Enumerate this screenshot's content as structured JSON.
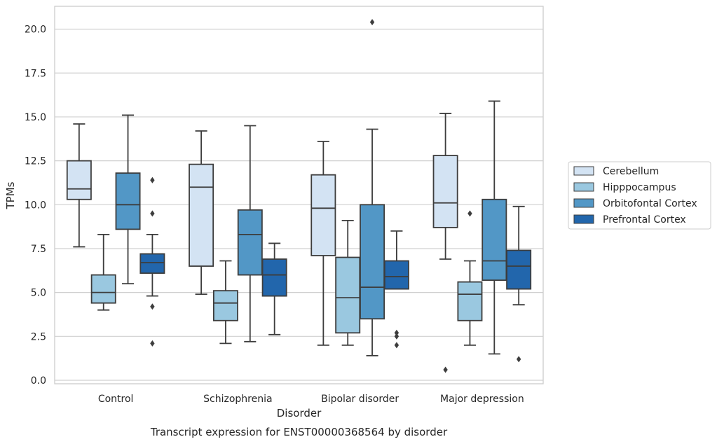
{
  "caption": "Transcript expression for ENST00000368564 by disorder",
  "chart_data": {
    "type": "box",
    "xlabel": "Disorder",
    "ylabel": "TPMs",
    "ylim": [
      -0.2,
      21.3
    ],
    "yticks": [
      "0.0",
      "2.5",
      "5.0",
      "7.5",
      "10.0",
      "12.5",
      "15.0",
      "17.5",
      "20.0"
    ],
    "ytick_values": [
      0,
      2.5,
      5,
      7.5,
      10,
      12.5,
      15,
      17.5,
      20
    ],
    "grid": "horizontal",
    "legend_placement": "right",
    "categories": [
      "Control",
      "Schizophrenia",
      "Bipolar disorder",
      "Major depression"
    ],
    "series": [
      {
        "name": "Cerebellum",
        "color": "#d3e3f3",
        "boxes": [
          {
            "whislo": 7.6,
            "q1": 10.3,
            "med": 10.9,
            "q3": 12.5,
            "whishi": 14.6,
            "fliers": []
          },
          {
            "whislo": 4.9,
            "q1": 6.5,
            "med": 11.0,
            "q3": 12.3,
            "whishi": 14.2,
            "fliers": []
          },
          {
            "whislo": 2.0,
            "q1": 7.1,
            "med": 9.8,
            "q3": 11.7,
            "whishi": 13.6,
            "fliers": []
          },
          {
            "whislo": 6.9,
            "q1": 8.7,
            "med": 10.1,
            "q3": 12.8,
            "whishi": 15.2,
            "fliers": [
              0.6
            ]
          }
        ]
      },
      {
        "name": "Hipppocampus",
        "color": "#9ac8e0",
        "boxes": [
          {
            "whislo": 4.0,
            "q1": 4.4,
            "med": 5.0,
            "q3": 6.0,
            "whishi": 8.3,
            "fliers": []
          },
          {
            "whislo": 2.1,
            "q1": 3.4,
            "med": 4.4,
            "q3": 5.1,
            "whishi": 6.8,
            "fliers": []
          },
          {
            "whislo": 2.0,
            "q1": 2.7,
            "med": 4.7,
            "q3": 7.0,
            "whishi": 9.1,
            "fliers": []
          },
          {
            "whislo": 2.0,
            "q1": 3.4,
            "med": 4.9,
            "q3": 5.6,
            "whishi": 6.8,
            "fliers": [
              9.5
            ]
          }
        ]
      },
      {
        "name": "Orbitofontal Cortex",
        "color": "#5297c6",
        "boxes": [
          {
            "whislo": 5.5,
            "q1": 8.6,
            "med": 10.0,
            "q3": 11.8,
            "whishi": 15.1,
            "fliers": []
          },
          {
            "whislo": 2.2,
            "q1": 6.0,
            "med": 8.3,
            "q3": 9.7,
            "whishi": 14.5,
            "fliers": []
          },
          {
            "whislo": 1.4,
            "q1": 3.5,
            "med": 5.3,
            "q3": 10.0,
            "whishi": 14.3,
            "fliers": [
              20.4
            ]
          },
          {
            "whislo": 1.5,
            "q1": 5.7,
            "med": 6.8,
            "q3": 10.3,
            "whishi": 15.9,
            "fliers": []
          }
        ]
      },
      {
        "name": "Prefrontal Cortex",
        "color": "#2266ac",
        "boxes": [
          {
            "whislo": 4.8,
            "q1": 6.1,
            "med": 6.7,
            "q3": 7.2,
            "whishi": 8.3,
            "fliers": [
              11.4,
              9.5,
              4.2,
              2.1
            ]
          },
          {
            "whislo": 2.6,
            "q1": 4.8,
            "med": 6.0,
            "q3": 6.9,
            "whishi": 7.8,
            "fliers": []
          },
          {
            "whislo": 5.2,
            "q1": 5.2,
            "med": 5.9,
            "q3": 6.8,
            "whishi": 8.5,
            "fliers": [
              2.7,
              2.5,
              2.0
            ]
          },
          {
            "whislo": 4.3,
            "q1": 5.2,
            "med": 6.5,
            "q3": 7.4,
            "whishi": 9.9,
            "fliers": [
              1.2
            ]
          }
        ]
      }
    ]
  }
}
